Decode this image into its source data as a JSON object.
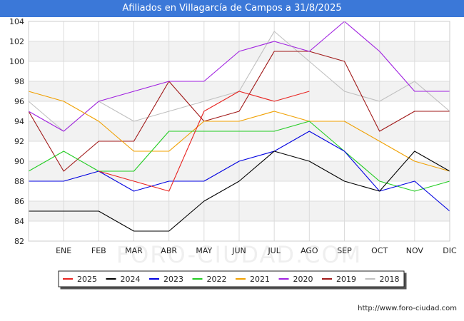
{
  "title": "Afiliados en Villagarcía de Campos a 31/8/2025",
  "footer_url": "http://www.foro-ciudad.com",
  "watermark": "FORO-CIUDAD.COM",
  "chart_data": {
    "type": "line",
    "title": "Afiliados en Villagarcía de Campos a 31/8/2025",
    "x": [
      "",
      "ENE",
      "FEB",
      "MAR",
      "ABR",
      "MAY",
      "JUN",
      "JUL",
      "AGO",
      "SEP",
      "OCT",
      "NOV",
      "DIC"
    ],
    "ylim": [
      82,
      104
    ],
    "yticks": [
      82,
      84,
      86,
      88,
      90,
      92,
      94,
      96,
      98,
      100,
      102,
      104
    ],
    "grid": true,
    "legend_position": "bottom",
    "series": [
      {
        "name": "2025",
        "color": "#e8221f",
        "values": [
          95,
          null,
          89,
          88,
          87,
          95,
          97,
          96,
          97,
          null,
          null,
          null,
          null
        ]
      },
      {
        "name": "2024",
        "color": "#000000",
        "values": [
          85,
          85,
          85,
          83,
          83,
          86,
          88,
          91,
          90,
          88,
          87,
          91,
          89
        ]
      },
      {
        "name": "2023",
        "color": "#0000e0",
        "values": [
          88,
          88,
          89,
          87,
          88,
          88,
          90,
          91,
          93,
          91,
          87,
          88,
          85
        ]
      },
      {
        "name": "2022",
        "color": "#22cc22",
        "values": [
          89,
          91,
          89,
          89,
          93,
          93,
          93,
          93,
          94,
          91,
          88,
          87,
          88
        ]
      },
      {
        "name": "2021",
        "color": "#f0a000",
        "values": [
          97,
          96,
          94,
          91,
          91,
          94,
          94,
          95,
          94,
          94,
          92,
          90,
          89
        ]
      },
      {
        "name": "2020",
        "color": "#a020e0",
        "values": [
          95,
          93,
          96,
          97,
          98,
          98,
          101,
          102,
          101,
          104,
          101,
          97,
          97
        ]
      },
      {
        "name": "2019",
        "color": "#a01818",
        "values": [
          95,
          89,
          92,
          92,
          98,
          94,
          95,
          101,
          101,
          100,
          93,
          95,
          95
        ]
      },
      {
        "name": "2018",
        "color": "#c0c0c0",
        "values": [
          96,
          93,
          96,
          94,
          95,
          96,
          97,
          103,
          100,
          97,
          96,
          98,
          95
        ]
      }
    ]
  }
}
